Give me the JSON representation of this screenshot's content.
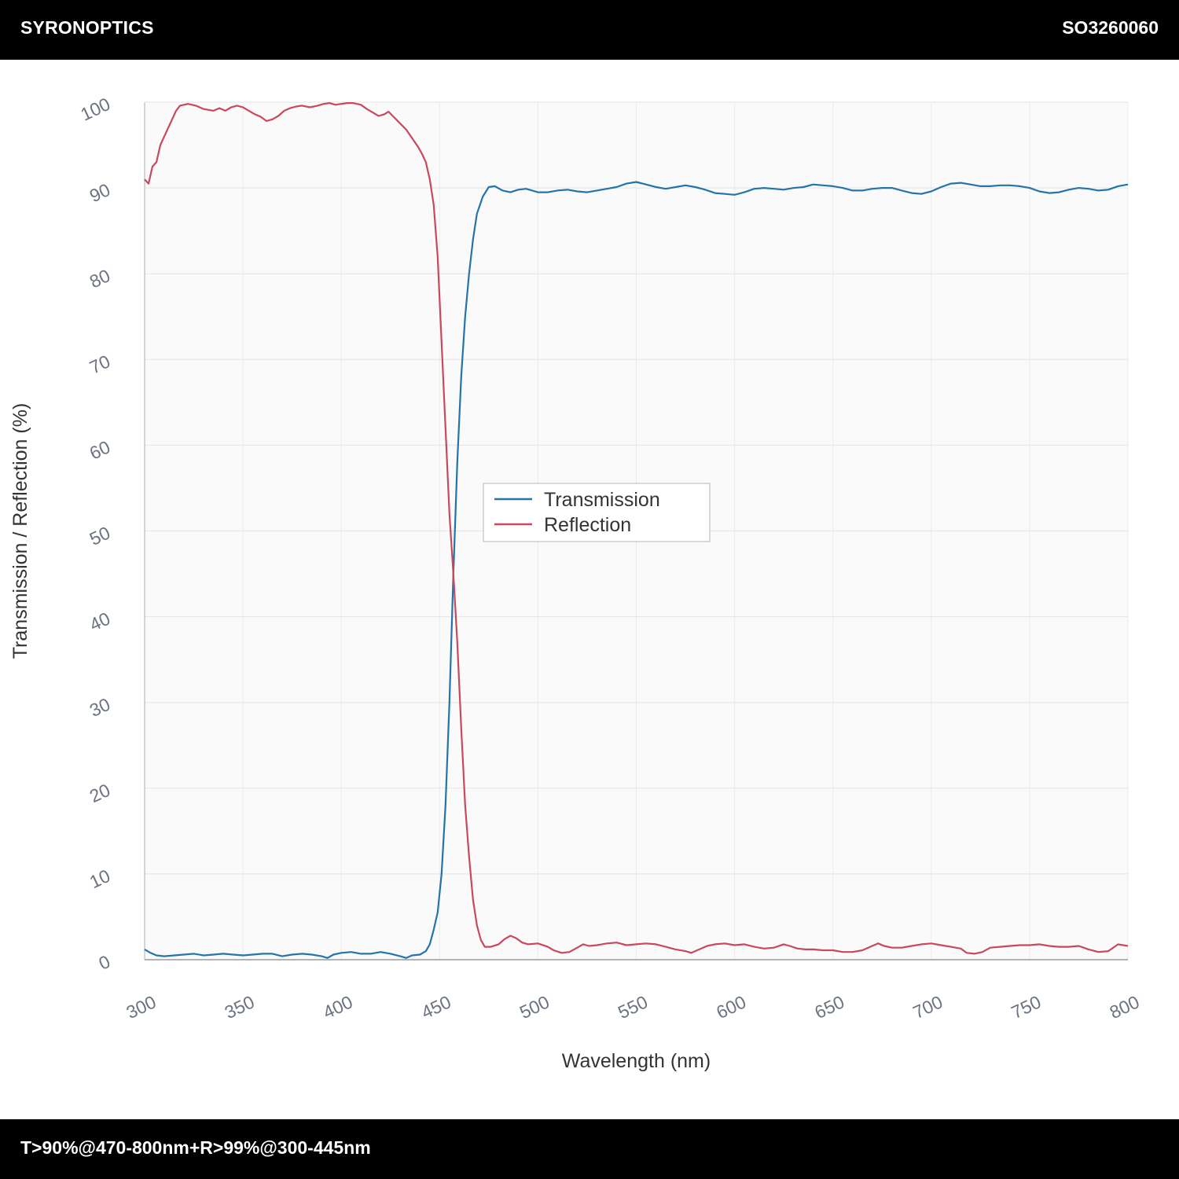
{
  "header": {
    "brand": "SYRONOPTICS",
    "part_number": "SO3260060"
  },
  "footer": {
    "spec": "T>90%@470-800nm+R>99%@300-445nm"
  },
  "chart_data": {
    "type": "line",
    "xlabel": "Wavelength (nm)",
    "ylabel": "Transmission / Reflection (%)",
    "xlim": [
      300,
      800
    ],
    "ylim": [
      0,
      100
    ],
    "xticks": [
      300,
      350,
      400,
      450,
      500,
      550,
      600,
      650,
      700,
      750,
      800
    ],
    "yticks": [
      0,
      10,
      20,
      30,
      40,
      50,
      60,
      70,
      80,
      90,
      100
    ],
    "grid": true,
    "legend_position": "center",
    "series": [
      {
        "name": "Transmission",
        "color": "#2574a9",
        "points": [
          [
            300,
            1.2
          ],
          [
            303,
            0.8
          ],
          [
            306,
            0.5
          ],
          [
            310,
            0.4
          ],
          [
            315,
            0.5
          ],
          [
            320,
            0.6
          ],
          [
            325,
            0.7
          ],
          [
            330,
            0.5
          ],
          [
            335,
            0.6
          ],
          [
            340,
            0.7
          ],
          [
            345,
            0.6
          ],
          [
            350,
            0.5
          ],
          [
            355,
            0.6
          ],
          [
            360,
            0.7
          ],
          [
            365,
            0.7
          ],
          [
            370,
            0.4
          ],
          [
            375,
            0.6
          ],
          [
            380,
            0.7
          ],
          [
            385,
            0.6
          ],
          [
            390,
            0.4
          ],
          [
            393,
            0.2
          ],
          [
            396,
            0.6
          ],
          [
            400,
            0.8
          ],
          [
            405,
            0.9
          ],
          [
            410,
            0.7
          ],
          [
            415,
            0.7
          ],
          [
            420,
            0.9
          ],
          [
            425,
            0.7
          ],
          [
            430,
            0.4
          ],
          [
            433,
            0.2
          ],
          [
            436,
            0.5
          ],
          [
            440,
            0.6
          ],
          [
            443,
            1.0
          ],
          [
            445,
            1.8
          ],
          [
            447,
            3.5
          ],
          [
            449,
            5.5
          ],
          [
            451,
            10
          ],
          [
            453,
            18
          ],
          [
            455,
            30
          ],
          [
            457,
            45
          ],
          [
            459,
            58
          ],
          [
            461,
            68
          ],
          [
            463,
            75
          ],
          [
            465,
            80
          ],
          [
            467,
            84
          ],
          [
            469,
            87
          ],
          [
            472,
            89
          ],
          [
            475,
            90.1
          ],
          [
            478,
            90.2
          ],
          [
            482,
            89.7
          ],
          [
            486,
            89.5
          ],
          [
            490,
            89.8
          ],
          [
            494,
            89.9
          ],
          [
            500,
            89.5
          ],
          [
            505,
            89.5
          ],
          [
            510,
            89.7
          ],
          [
            515,
            89.8
          ],
          [
            520,
            89.6
          ],
          [
            525,
            89.5
          ],
          [
            530,
            89.7
          ],
          [
            535,
            89.9
          ],
          [
            540,
            90.1
          ],
          [
            545,
            90.5
          ],
          [
            550,
            90.7
          ],
          [
            555,
            90.4
          ],
          [
            560,
            90.1
          ],
          [
            565,
            89.9
          ],
          [
            570,
            90.1
          ],
          [
            575,
            90.3
          ],
          [
            580,
            90.1
          ],
          [
            585,
            89.8
          ],
          [
            590,
            89.4
          ],
          [
            595,
            89.3
          ],
          [
            600,
            89.2
          ],
          [
            605,
            89.5
          ],
          [
            610,
            89.9
          ],
          [
            615,
            90.0
          ],
          [
            620,
            89.9
          ],
          [
            625,
            89.8
          ],
          [
            630,
            90.0
          ],
          [
            635,
            90.1
          ],
          [
            640,
            90.4
          ],
          [
            645,
            90.3
          ],
          [
            650,
            90.2
          ],
          [
            655,
            90.0
          ],
          [
            660,
            89.7
          ],
          [
            665,
            89.7
          ],
          [
            670,
            89.9
          ],
          [
            675,
            90.0
          ],
          [
            680,
            90.0
          ],
          [
            685,
            89.7
          ],
          [
            690,
            89.4
          ],
          [
            695,
            89.3
          ],
          [
            700,
            89.6
          ],
          [
            705,
            90.1
          ],
          [
            710,
            90.5
          ],
          [
            715,
            90.6
          ],
          [
            720,
            90.4
          ],
          [
            725,
            90.2
          ],
          [
            730,
            90.2
          ],
          [
            735,
            90.3
          ],
          [
            740,
            90.3
          ],
          [
            745,
            90.2
          ],
          [
            750,
            90.0
          ],
          [
            755,
            89.6
          ],
          [
            760,
            89.4
          ],
          [
            765,
            89.5
          ],
          [
            770,
            89.8
          ],
          [
            775,
            90.0
          ],
          [
            780,
            89.9
          ],
          [
            785,
            89.7
          ],
          [
            790,
            89.8
          ],
          [
            795,
            90.2
          ],
          [
            800,
            90.4
          ]
        ]
      },
      {
        "name": "Reflection",
        "color": "#c9485b",
        "points": [
          [
            300,
            91
          ],
          [
            302,
            90.5
          ],
          [
            304,
            92.5
          ],
          [
            306,
            93
          ],
          [
            308,
            95
          ],
          [
            310,
            96
          ],
          [
            312,
            97
          ],
          [
            314,
            98
          ],
          [
            316,
            99
          ],
          [
            318,
            99.6
          ],
          [
            322,
            99.8
          ],
          [
            326,
            99.6
          ],
          [
            330,
            99.2
          ],
          [
            335,
            99.0
          ],
          [
            338,
            99.3
          ],
          [
            341,
            99.0
          ],
          [
            344,
            99.4
          ],
          [
            347,
            99.6
          ],
          [
            350,
            99.4
          ],
          [
            353,
            99.0
          ],
          [
            356,
            98.6
          ],
          [
            359,
            98.3
          ],
          [
            362,
            97.8
          ],
          [
            365,
            98.0
          ],
          [
            368,
            98.4
          ],
          [
            371,
            99.0
          ],
          [
            374,
            99.3
          ],
          [
            377,
            99.5
          ],
          [
            380,
            99.6
          ],
          [
            384,
            99.4
          ],
          [
            388,
            99.6
          ],
          [
            391,
            99.8
          ],
          [
            394,
            99.9
          ],
          [
            397,
            99.7
          ],
          [
            400,
            99.8
          ],
          [
            403,
            99.9
          ],
          [
            406,
            99.9
          ],
          [
            410,
            99.7
          ],
          [
            413,
            99.2
          ],
          [
            416,
            98.8
          ],
          [
            419,
            98.4
          ],
          [
            422,
            98.6
          ],
          [
            424,
            98.9
          ],
          [
            427,
            98.2
          ],
          [
            430,
            97.5
          ],
          [
            433,
            96.8
          ],
          [
            436,
            95.8
          ],
          [
            439,
            94.8
          ],
          [
            441,
            94.0
          ],
          [
            443,
            93.0
          ],
          [
            445,
            91
          ],
          [
            447,
            88
          ],
          [
            449,
            82
          ],
          [
            451,
            72
          ],
          [
            453,
            62
          ],
          [
            455,
            52
          ],
          [
            457,
            45
          ],
          [
            459,
            37
          ],
          [
            461,
            27
          ],
          [
            463,
            18
          ],
          [
            465,
            12
          ],
          [
            467,
            7
          ],
          [
            469,
            4
          ],
          [
            471,
            2.3
          ],
          [
            473,
            1.5
          ],
          [
            476,
            1.5
          ],
          [
            480,
            1.8
          ],
          [
            483,
            2.4
          ],
          [
            486,
            2.8
          ],
          [
            489,
            2.5
          ],
          [
            492,
            2.0
          ],
          [
            495,
            1.8
          ],
          [
            500,
            1.9
          ],
          [
            505,
            1.5
          ],
          [
            508,
            1.1
          ],
          [
            512,
            0.8
          ],
          [
            516,
            0.9
          ],
          [
            520,
            1.4
          ],
          [
            523,
            1.8
          ],
          [
            526,
            1.6
          ],
          [
            530,
            1.7
          ],
          [
            535,
            1.9
          ],
          [
            540,
            2.0
          ],
          [
            545,
            1.7
          ],
          [
            550,
            1.8
          ],
          [
            555,
            1.9
          ],
          [
            560,
            1.8
          ],
          [
            565,
            1.5
          ],
          [
            570,
            1.2
          ],
          [
            575,
            1.0
          ],
          [
            578,
            0.8
          ],
          [
            582,
            1.2
          ],
          [
            586,
            1.6
          ],
          [
            590,
            1.8
          ],
          [
            595,
            1.9
          ],
          [
            600,
            1.7
          ],
          [
            605,
            1.8
          ],
          [
            610,
            1.5
          ],
          [
            615,
            1.3
          ],
          [
            620,
            1.4
          ],
          [
            625,
            1.8
          ],
          [
            628,
            1.6
          ],
          [
            632,
            1.3
          ],
          [
            636,
            1.2
          ],
          [
            640,
            1.2
          ],
          [
            645,
            1.1
          ],
          [
            650,
            1.1
          ],
          [
            655,
            0.9
          ],
          [
            660,
            0.9
          ],
          [
            665,
            1.1
          ],
          [
            670,
            1.6
          ],
          [
            673,
            1.9
          ],
          [
            676,
            1.6
          ],
          [
            680,
            1.4
          ],
          [
            685,
            1.4
          ],
          [
            690,
            1.6
          ],
          [
            695,
            1.8
          ],
          [
            700,
            1.9
          ],
          [
            705,
            1.7
          ],
          [
            710,
            1.5
          ],
          [
            715,
            1.3
          ],
          [
            718,
            0.8
          ],
          [
            722,
            0.7
          ],
          [
            726,
            0.9
          ],
          [
            730,
            1.4
          ],
          [
            735,
            1.5
          ],
          [
            740,
            1.6
          ],
          [
            745,
            1.7
          ],
          [
            750,
            1.7
          ],
          [
            755,
            1.8
          ],
          [
            760,
            1.6
          ],
          [
            765,
            1.5
          ],
          [
            770,
            1.5
          ],
          [
            775,
            1.6
          ],
          [
            780,
            1.2
          ],
          [
            785,
            0.9
          ],
          [
            790,
            1.0
          ],
          [
            795,
            1.8
          ],
          [
            800,
            1.6
          ]
        ]
      }
    ]
  }
}
